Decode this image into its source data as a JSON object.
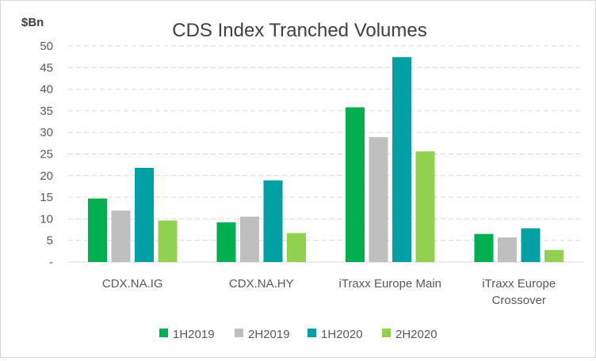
{
  "chart_data": {
    "type": "bar",
    "title": "CDS Index Tranched Volumes",
    "ylabel": "$Bn",
    "xlabel": "",
    "ylim": [
      0,
      50
    ],
    "yticks": [
      "-",
      "5",
      "10",
      "15",
      "20",
      "25",
      "30",
      "35",
      "40",
      "45",
      "50"
    ],
    "y_grid": true,
    "legend_position": "bottom",
    "categories": [
      [
        "CDX.NA.IG"
      ],
      [
        "CDX.NA.HY"
      ],
      [
        "iTraxx Europe Main"
      ],
      [
        "iTraxx Europe",
        "Crossover"
      ]
    ],
    "series": [
      {
        "name": "1H2019",
        "color": "#00b050",
        "values": [
          14.7,
          9.2,
          35.8,
          6.5
        ]
      },
      {
        "name": "2H2019",
        "color": "#bfbfbf",
        "values": [
          11.9,
          10.5,
          28.9,
          5.7
        ]
      },
      {
        "name": "1H2020",
        "color": "#00a0a4",
        "values": [
          21.8,
          18.9,
          47.4,
          7.8
        ]
      },
      {
        "name": "2H2020",
        "color": "#92d050",
        "values": [
          9.6,
          6.7,
          25.6,
          2.8
        ]
      }
    ]
  }
}
